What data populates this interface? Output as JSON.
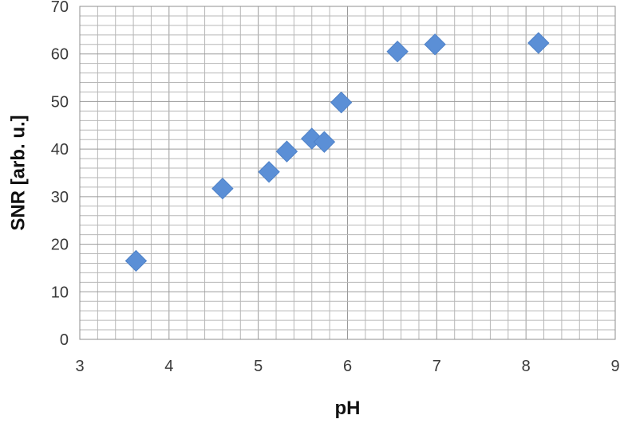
{
  "chart_data": {
    "type": "scatter",
    "title": "",
    "xlabel": "pH",
    "ylabel": "SNR [arb. u.]",
    "xlim": [
      3,
      9
    ],
    "ylim": [
      0,
      70
    ],
    "x_ticks": [
      3,
      4,
      5,
      6,
      7,
      8,
      9
    ],
    "y_ticks": [
      0,
      10,
      20,
      30,
      40,
      50,
      60,
      70
    ],
    "grid": true,
    "legend": "none",
    "series": [
      {
        "color": "#5b8fd6",
        "marker": "diamond",
        "points": [
          {
            "x": 3.63,
            "y": 16.5
          },
          {
            "x": 4.6,
            "y": 31.7
          },
          {
            "x": 5.12,
            "y": 35.2
          },
          {
            "x": 5.32,
            "y": 39.5
          },
          {
            "x": 5.6,
            "y": 42.2
          },
          {
            "x": 5.74,
            "y": 41.5
          },
          {
            "x": 5.93,
            "y": 49.8
          },
          {
            "x": 6.56,
            "y": 60.5
          },
          {
            "x": 6.98,
            "y": 62.0
          },
          {
            "x": 8.14,
            "y": 62.3
          }
        ]
      }
    ]
  }
}
